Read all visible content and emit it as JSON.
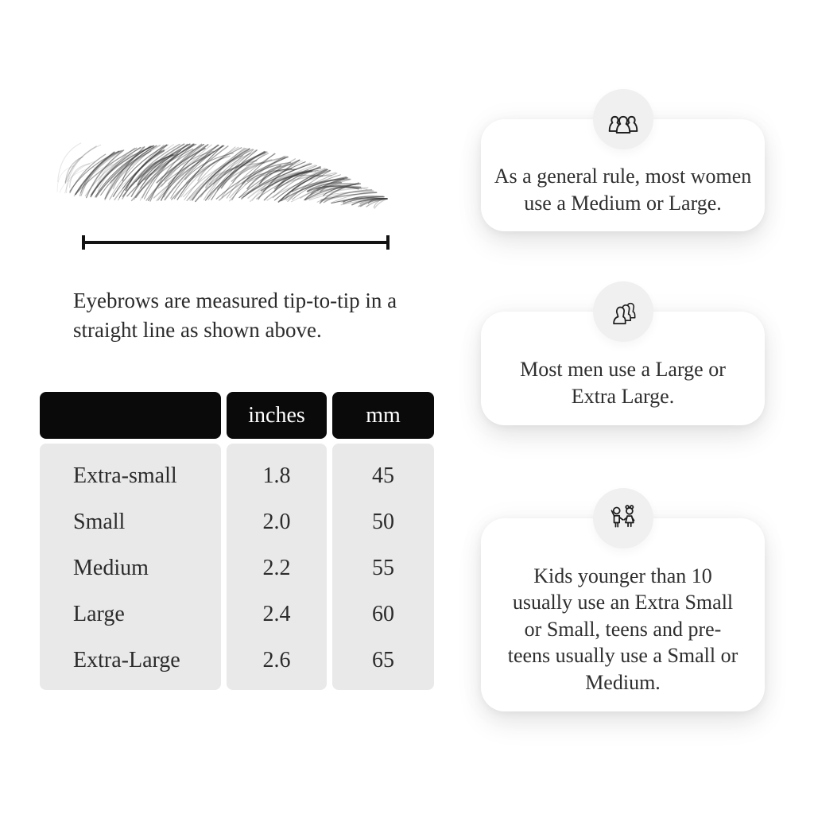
{
  "diagram": {
    "caption": "Eyebrows are measured tip-to-tip in a straight line as shown above."
  },
  "size_table": {
    "headers": {
      "label": "",
      "inches": "inches",
      "mm": "mm"
    },
    "rows": [
      {
        "label": "Extra-small",
        "inches": "1.8",
        "mm": "45"
      },
      {
        "label": "Small",
        "inches": "2.0",
        "mm": "50"
      },
      {
        "label": "Medium",
        "inches": "2.2",
        "mm": "55"
      },
      {
        "label": "Large",
        "inches": "2.4",
        "mm": "60"
      },
      {
        "label": "Extra-Large",
        "inches": "2.6",
        "mm": "65"
      }
    ]
  },
  "info_cards": [
    {
      "icon": "women-group-icon",
      "text": "As a general rule, most women use a Medium or Large."
    },
    {
      "icon": "men-group-icon",
      "text": "Most men use a Large or Extra Large."
    },
    {
      "icon": "children-icon",
      "text": "Kids younger than 10 usually use an Extra Small or Small, teens and pre-teens usually use a Small or Medium."
    }
  ],
  "colors": {
    "background": "#ffffff",
    "table_header_bg": "#0a0a0a",
    "table_header_text": "#ffffff",
    "table_body_bg": "#e9e9e9",
    "text": "#2b2b2b",
    "card_bg": "#ffffff",
    "badge_bg": "#f0f0f0",
    "icon_stroke": "#1c1c1c",
    "measure_line": "#131313"
  }
}
